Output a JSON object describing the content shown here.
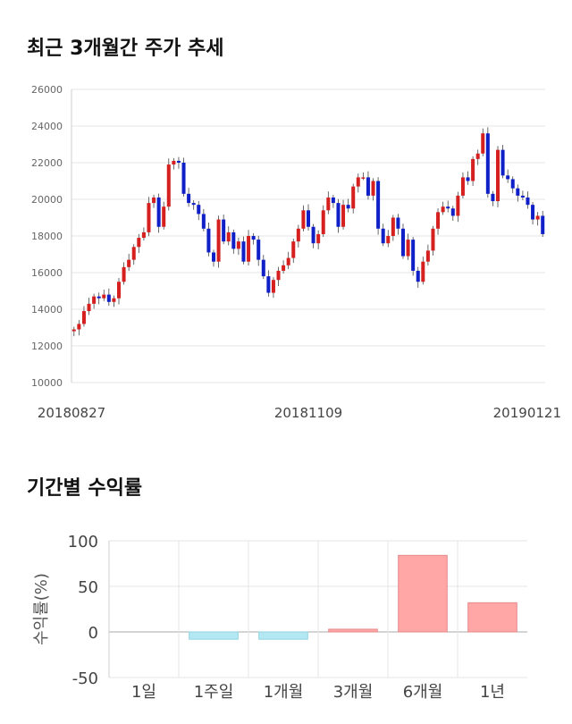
{
  "sections": {
    "price_title": "최근 3개월간 주가 추세",
    "returns_title": "기간별 수익률"
  },
  "colors": {
    "up": "#d62020",
    "down": "#1020c8",
    "positive_bar": "#ffa6a6",
    "negative_bar": "#b3e8f2",
    "grid": "#e6e6e6"
  },
  "chart_data": [
    {
      "type": "candlestick",
      "title": "최근 3개월간 주가 추세",
      "ylim": [
        10000,
        26000
      ],
      "yticks": [
        10000,
        12000,
        14000,
        16000,
        18000,
        20000,
        22000,
        24000,
        26000
      ],
      "xtick_labels": [
        "20180827",
        "20181109",
        "20190121"
      ],
      "closes": [
        12900,
        13200,
        13900,
        14300,
        14700,
        14600,
        14800,
        14400,
        14600,
        15500,
        16300,
        16700,
        17400,
        17900,
        18200,
        19800,
        20100,
        18500,
        19600,
        21900,
        22100,
        22000,
        20300,
        19800,
        19700,
        19200,
        18400,
        17100,
        16600,
        18900,
        17700,
        18200,
        17300,
        17700,
        16600,
        18000,
        17800,
        16700,
        15800,
        14900,
        15600,
        16100,
        16400,
        16800,
        17700,
        18400,
        19400,
        18500,
        17600,
        18100,
        19400,
        20100,
        19800,
        18500,
        19700,
        19500,
        20700,
        21200,
        21200,
        20200,
        21000,
        18400,
        17600,
        18000,
        19000,
        18400,
        16900,
        17800,
        16100,
        15500,
        16600,
        17200,
        18400,
        19300,
        19600,
        19500,
        19100,
        20200,
        21200,
        21000,
        22200,
        22500,
        23600,
        20300,
        19900,
        22700,
        21300,
        21100,
        20600,
        20200,
        20100,
        19700,
        18900,
        19100,
        18100
      ]
    },
    {
      "type": "bar",
      "title": "기간별 수익률",
      "ylabel": "수익률(%)",
      "ylim": [
        -50,
        100
      ],
      "yticks": [
        100,
        50,
        0,
        -50
      ],
      "categories": [
        "1일",
        "1주일",
        "1개월",
        "3개월",
        "6개월",
        "1년"
      ],
      "values": [
        0,
        -8,
        -8,
        3,
        84,
        32
      ]
    }
  ]
}
